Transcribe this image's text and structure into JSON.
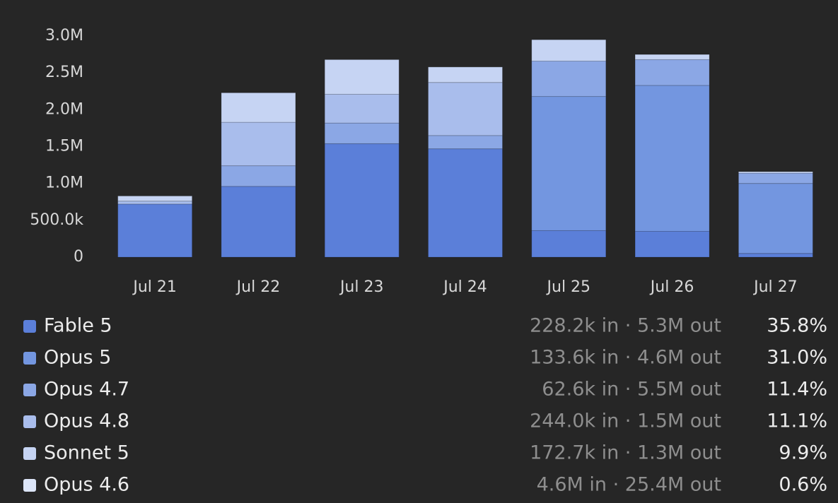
{
  "chart_data": {
    "type": "stacked_bar",
    "categories": [
      "Jul 21",
      "Jul 22",
      "Jul 23",
      "Jul 24",
      "Jul 25",
      "Jul 26",
      "Jul 27"
    ],
    "series": [
      {
        "name": "Fable 5",
        "color": "#5b7fd9",
        "values": [
          720000,
          960000,
          1540000,
          1470000,
          360000,
          350000,
          50000
        ],
        "stats": "228.2k in · 5.3M out",
        "share": "35.8%"
      },
      {
        "name": "Opus 5",
        "color": "#7396e0",
        "values": [
          0,
          0,
          0,
          0,
          1820000,
          1980000,
          950000
        ],
        "stats": "133.6k in · 4.6M out",
        "share": "31.0%"
      },
      {
        "name": "Opus 4.7",
        "color": "#8ba7e5",
        "values": [
          0,
          280000,
          280000,
          180000,
          480000,
          350000,
          140000
        ],
        "stats": "62.6k in · 5.5M out",
        "share": "11.4%"
      },
      {
        "name": "Opus 4.8",
        "color": "#a9bdec",
        "values": [
          40000,
          590000,
          390000,
          720000,
          0,
          0,
          0
        ],
        "stats": "244.0k in · 1.5M out",
        "share": "11.1%"
      },
      {
        "name": "Sonnet 5",
        "color": "#c6d4f3",
        "values": [
          70000,
          400000,
          470000,
          210000,
          290000,
          70000,
          20000
        ],
        "stats": "172.7k in · 1.3M out",
        "share": "9.9%"
      },
      {
        "name": "Opus 4.6",
        "color": "#dce5f8",
        "values": [
          0,
          0,
          0,
          0,
          0,
          0,
          0
        ],
        "stats": "4.6M in · 25.4M out",
        "share": "0.6%"
      }
    ],
    "ylim": [
      0,
      3000000
    ],
    "yticks": [
      0,
      {
        "value": 500000,
        "label": "500.0k"
      },
      {
        "value": 1000000,
        "label": "1.0M"
      },
      {
        "value": 1500000,
        "label": "1.5M"
      },
      {
        "value": 2000000,
        "label": "2.0M"
      },
      {
        "value": 2500000,
        "label": "2.5M"
      },
      {
        "value": 3000000,
        "label": "3.0M"
      }
    ]
  }
}
